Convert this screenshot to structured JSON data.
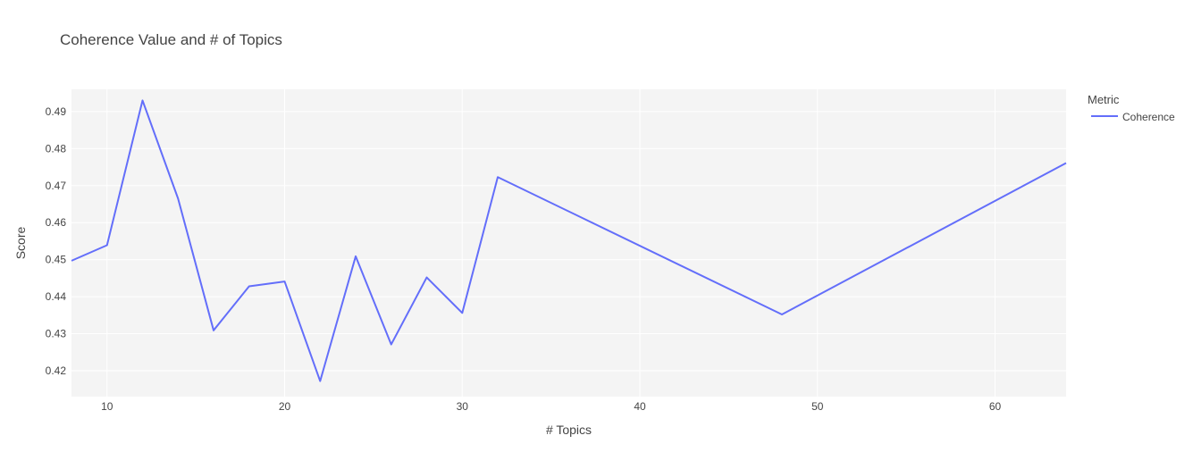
{
  "chart_data": {
    "type": "line",
    "title": "Coherence Value and # of Topics",
    "xlabel": "# Topics",
    "ylabel": "Score",
    "xlim": [
      8,
      64
    ],
    "ylim": [
      0.413,
      0.496
    ],
    "x_ticks": [
      10,
      20,
      30,
      40,
      50,
      60
    ],
    "y_ticks": [
      0.42,
      0.43,
      0.44,
      0.45,
      0.46,
      0.47,
      0.48,
      0.49
    ],
    "grid": true,
    "legend_title": "Metric",
    "legend_position": "top-right",
    "series": [
      {
        "name": "Coherence",
        "color": "#636efa",
        "x": [
          8,
          10,
          12,
          14,
          16,
          18,
          20,
          22,
          24,
          26,
          28,
          30,
          32,
          48,
          64
        ],
        "y": [
          0.4497,
          0.4539,
          0.493,
          0.4665,
          0.4309,
          0.4428,
          0.4441,
          0.4172,
          0.4509,
          0.4271,
          0.4452,
          0.4356,
          0.4723,
          0.4352,
          0.4761
        ]
      }
    ]
  }
}
